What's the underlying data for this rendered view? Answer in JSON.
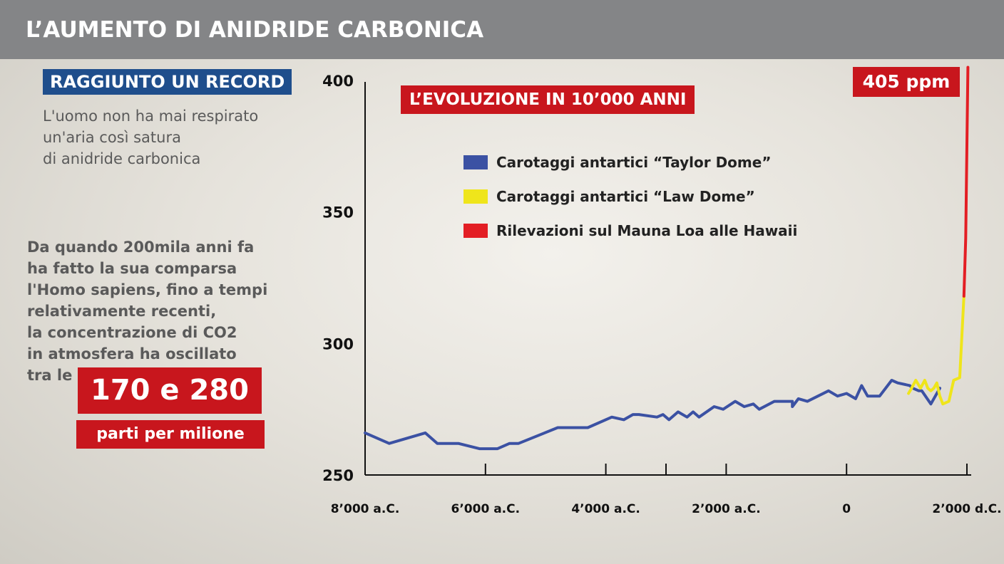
{
  "header": {
    "title": "L’AUMENTO DI ANIDRIDE CARBONICA"
  },
  "left": {
    "badge": "RAGGIUNTO UN RECORD",
    "intro_lines": [
      "L'uomo non ha mai respirato",
      "un'aria così satura",
      "di anidride carbonica"
    ],
    "body_lines": [
      "Da quando 200mila anni fa",
      "ha fatto la sua comparsa",
      "l'Homo sapiens, fino a tempi",
      "relativamente recenti,",
      "la concentrazione di CO2",
      "in atmosfera ha oscillato",
      "tra le"
    ],
    "range_value": "170 e 280",
    "range_unit": "parti per milione"
  },
  "colors": {
    "accent_red": "#c8161d",
    "badge_blue": "#1f4e8c",
    "header_gray": "#848587"
  },
  "chart_data": {
    "type": "line",
    "title": "L’EVOLUZIONE IN 10’000 ANNI",
    "callout": "405 ppm",
    "xlabel": "",
    "ylabel": "",
    "xlim": [
      -8000,
      2000
    ],
    "ylim": [
      250,
      400
    ],
    "y_ticks": [
      250,
      300,
      350,
      400
    ],
    "x_ticks": [
      {
        "value": -8000,
        "label": "8’000 a.C."
      },
      {
        "value": -6000,
        "label": "6’000 a.C."
      },
      {
        "value": -4000,
        "label": "4’000 a.C."
      },
      {
        "value": -2000,
        "label": "2’000 a.C."
      },
      {
        "value": 0,
        "label": "0"
      },
      {
        "value": 2000,
        "label": "2’000 d.C."
      }
    ],
    "x_minor_ticks": [
      -3000
    ],
    "series": [
      {
        "name": "Carotaggi antartici “Taylor Dome”",
        "color": "#3b51a3",
        "x": [
          -8000,
          -7600,
          -7000,
          -6800,
          -6450,
          -6100,
          -5800,
          -5600,
          -5450,
          -4800,
          -4300,
          -3900,
          -3700,
          -3550,
          -3450,
          -3150,
          -3050,
          -2950,
          -2800,
          -2650,
          -2550,
          -2450,
          -2200,
          -2050,
          -1850,
          -1700,
          -1550,
          -1450,
          -1200,
          -1050,
          -900,
          -900,
          -800,
          -650,
          -300,
          -150,
          0,
          150,
          250,
          350,
          550,
          750,
          850,
          1050,
          1100,
          1200,
          1250,
          1400,
          1550
        ],
        "y": [
          266,
          262,
          266,
          262,
          262,
          260,
          260,
          262,
          262,
          268,
          268,
          272,
          271,
          273,
          273,
          272,
          273,
          271,
          274,
          272,
          274,
          272,
          276,
          275,
          278,
          276,
          277,
          275,
          278,
          278,
          278,
          276,
          279,
          278,
          282,
          280,
          281,
          279,
          284,
          280,
          280,
          286,
          285,
          284,
          283,
          282,
          282,
          277,
          283
        ]
      },
      {
        "name": "Carotaggi antartici “Law  Dome”",
        "color": "#efe51b",
        "x": [
          1030,
          1080,
          1150,
          1230,
          1300,
          1350,
          1400,
          1450,
          1500,
          1550,
          1600,
          1700,
          1780,
          1880,
          1950
        ],
        "y": [
          281,
          283,
          286,
          283,
          286,
          283,
          282,
          283,
          285,
          280,
          277,
          278,
          286,
          287,
          318
        ]
      },
      {
        "name": "Rilevazioni sul Mauna Loa alle Hawaii",
        "color": "#e31e24",
        "x": [
          1950,
          1980,
          2016
        ],
        "y": [
          318,
          340,
          405
        ]
      }
    ]
  }
}
